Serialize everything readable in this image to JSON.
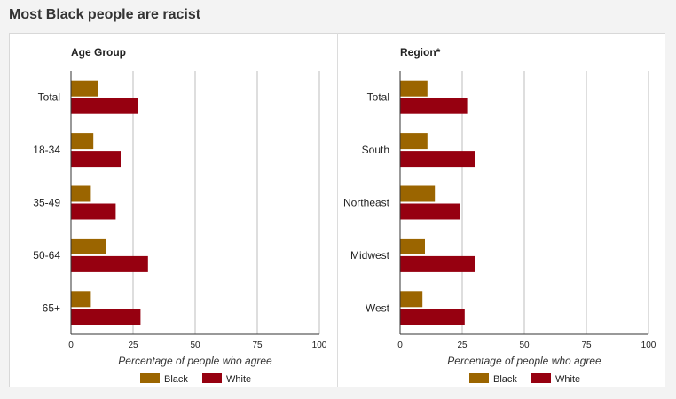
{
  "page": {
    "title": "Most Black people are racist"
  },
  "legend": [
    {
      "name": "Black",
      "color": "#9b6500"
    },
    {
      "name": "White",
      "color": "#960010"
    }
  ],
  "chart_data": [
    {
      "type": "bar",
      "orientation": "horizontal",
      "title": "Age Group",
      "xlabel": "Percentage of people who agree",
      "categories": [
        "Total",
        "18-34",
        "35-49",
        "50-64",
        "65+"
      ],
      "series": [
        {
          "name": "Black",
          "color": "#9b6500",
          "values": [
            11,
            9,
            8,
            14,
            8
          ]
        },
        {
          "name": "White",
          "color": "#960010",
          "values": [
            27,
            20,
            18,
            31,
            28
          ]
        }
      ],
      "xlim": [
        0,
        100
      ],
      "ticks": [
        0,
        25,
        50,
        75,
        100
      ],
      "grid": true,
      "legend_position": "bottom"
    },
    {
      "type": "bar",
      "orientation": "horizontal",
      "title": "Region*",
      "xlabel": "Percentage of people who agree",
      "categories": [
        "Total",
        "South",
        "Northeast",
        "Midwest",
        "West"
      ],
      "series": [
        {
          "name": "Black",
          "color": "#9b6500",
          "values": [
            11,
            11,
            14,
            10,
            9
          ]
        },
        {
          "name": "White",
          "color": "#960010",
          "values": [
            27,
            30,
            24,
            30,
            26
          ]
        }
      ],
      "xlim": [
        0,
        100
      ],
      "ticks": [
        0,
        25,
        50,
        75,
        100
      ],
      "grid": true,
      "legend_position": "bottom"
    }
  ]
}
